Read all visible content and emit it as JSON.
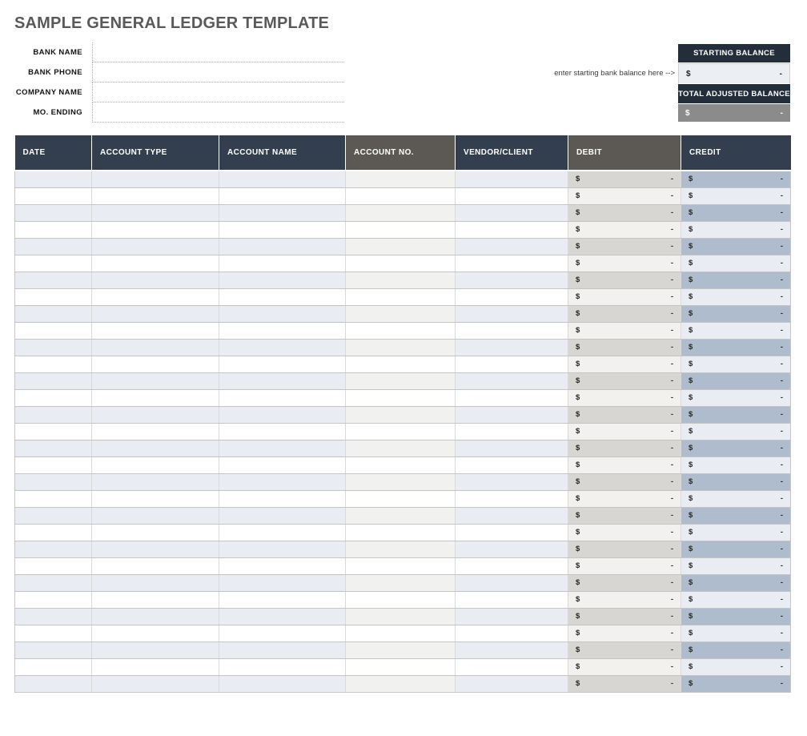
{
  "title": "SAMPLE GENERAL LEDGER TEMPLATE",
  "form": {
    "fields": [
      {
        "label": "BANK NAME",
        "value": ""
      },
      {
        "label": "BANK PHONE",
        "value": ""
      },
      {
        "label": "COMPANY NAME",
        "value": ""
      },
      {
        "label": "MO. ENDING",
        "value": ""
      }
    ]
  },
  "balance_panel": {
    "hint": "enter starting bank balance here -->",
    "starting": {
      "label": "STARTING BALANCE",
      "currency": "$",
      "amount": "-"
    },
    "total": {
      "label": "TOTAL ADJUSTED BALANCE",
      "currency": "$",
      "amount": "-"
    }
  },
  "ledger_table": {
    "columns": [
      {
        "label": "DATE",
        "style": "navy"
      },
      {
        "label": "ACCOUNT TYPE",
        "style": "navy"
      },
      {
        "label": "ACCOUNT NAME",
        "style": "navy"
      },
      {
        "label": "ACCOUNT NO.",
        "style": "gray"
      },
      {
        "label": "VENDOR/CLIENT",
        "style": "navy"
      },
      {
        "label": "DEBIT",
        "style": "gray"
      },
      {
        "label": "CREDIT",
        "style": "navy"
      }
    ],
    "rows": [
      {
        "date": "",
        "account_type": "",
        "account_name": "",
        "account_no": "",
        "vendor_client": "",
        "debit": {
          "currency": "$",
          "amount": "-"
        },
        "credit": {
          "currency": "$",
          "amount": "-"
        }
      },
      {
        "date": "",
        "account_type": "",
        "account_name": "",
        "account_no": "",
        "vendor_client": "",
        "debit": {
          "currency": "$",
          "amount": "-"
        },
        "credit": {
          "currency": "$",
          "amount": "-"
        }
      },
      {
        "date": "",
        "account_type": "",
        "account_name": "",
        "account_no": "",
        "vendor_client": "",
        "debit": {
          "currency": "$",
          "amount": "-"
        },
        "credit": {
          "currency": "$",
          "amount": "-"
        }
      },
      {
        "date": "",
        "account_type": "",
        "account_name": "",
        "account_no": "",
        "vendor_client": "",
        "debit": {
          "currency": "$",
          "amount": "-"
        },
        "credit": {
          "currency": "$",
          "amount": "-"
        }
      },
      {
        "date": "",
        "account_type": "",
        "account_name": "",
        "account_no": "",
        "vendor_client": "",
        "debit": {
          "currency": "$",
          "amount": "-"
        },
        "credit": {
          "currency": "$",
          "amount": "-"
        }
      },
      {
        "date": "",
        "account_type": "",
        "account_name": "",
        "account_no": "",
        "vendor_client": "",
        "debit": {
          "currency": "$",
          "amount": "-"
        },
        "credit": {
          "currency": "$",
          "amount": "-"
        }
      },
      {
        "date": "",
        "account_type": "",
        "account_name": "",
        "account_no": "",
        "vendor_client": "",
        "debit": {
          "currency": "$",
          "amount": "-"
        },
        "credit": {
          "currency": "$",
          "amount": "-"
        }
      },
      {
        "date": "",
        "account_type": "",
        "account_name": "",
        "account_no": "",
        "vendor_client": "",
        "debit": {
          "currency": "$",
          "amount": "-"
        },
        "credit": {
          "currency": "$",
          "amount": "-"
        }
      },
      {
        "date": "",
        "account_type": "",
        "account_name": "",
        "account_no": "",
        "vendor_client": "",
        "debit": {
          "currency": "$",
          "amount": "-"
        },
        "credit": {
          "currency": "$",
          "amount": "-"
        }
      },
      {
        "date": "",
        "account_type": "",
        "account_name": "",
        "account_no": "",
        "vendor_client": "",
        "debit": {
          "currency": "$",
          "amount": "-"
        },
        "credit": {
          "currency": "$",
          "amount": "-"
        }
      },
      {
        "date": "",
        "account_type": "",
        "account_name": "",
        "account_no": "",
        "vendor_client": "",
        "debit": {
          "currency": "$",
          "amount": "-"
        },
        "credit": {
          "currency": "$",
          "amount": "-"
        }
      },
      {
        "date": "",
        "account_type": "",
        "account_name": "",
        "account_no": "",
        "vendor_client": "",
        "debit": {
          "currency": "$",
          "amount": "-"
        },
        "credit": {
          "currency": "$",
          "amount": "-"
        }
      },
      {
        "date": "",
        "account_type": "",
        "account_name": "",
        "account_no": "",
        "vendor_client": "",
        "debit": {
          "currency": "$",
          "amount": "-"
        },
        "credit": {
          "currency": "$",
          "amount": "-"
        }
      },
      {
        "date": "",
        "account_type": "",
        "account_name": "",
        "account_no": "",
        "vendor_client": "",
        "debit": {
          "currency": "$",
          "amount": "-"
        },
        "credit": {
          "currency": "$",
          "amount": "-"
        }
      },
      {
        "date": "",
        "account_type": "",
        "account_name": "",
        "account_no": "",
        "vendor_client": "",
        "debit": {
          "currency": "$",
          "amount": "-"
        },
        "credit": {
          "currency": "$",
          "amount": "-"
        }
      },
      {
        "date": "",
        "account_type": "",
        "account_name": "",
        "account_no": "",
        "vendor_client": "",
        "debit": {
          "currency": "$",
          "amount": "-"
        },
        "credit": {
          "currency": "$",
          "amount": "-"
        }
      },
      {
        "date": "",
        "account_type": "",
        "account_name": "",
        "account_no": "",
        "vendor_client": "",
        "debit": {
          "currency": "$",
          "amount": "-"
        },
        "credit": {
          "currency": "$",
          "amount": "-"
        }
      },
      {
        "date": "",
        "account_type": "",
        "account_name": "",
        "account_no": "",
        "vendor_client": "",
        "debit": {
          "currency": "$",
          "amount": "-"
        },
        "credit": {
          "currency": "$",
          "amount": "-"
        }
      },
      {
        "date": "",
        "account_type": "",
        "account_name": "",
        "account_no": "",
        "vendor_client": "",
        "debit": {
          "currency": "$",
          "amount": "-"
        },
        "credit": {
          "currency": "$",
          "amount": "-"
        }
      },
      {
        "date": "",
        "account_type": "",
        "account_name": "",
        "account_no": "",
        "vendor_client": "",
        "debit": {
          "currency": "$",
          "amount": "-"
        },
        "credit": {
          "currency": "$",
          "amount": "-"
        }
      },
      {
        "date": "",
        "account_type": "",
        "account_name": "",
        "account_no": "",
        "vendor_client": "",
        "debit": {
          "currency": "$",
          "amount": "-"
        },
        "credit": {
          "currency": "$",
          "amount": "-"
        }
      },
      {
        "date": "",
        "account_type": "",
        "account_name": "",
        "account_no": "",
        "vendor_client": "",
        "debit": {
          "currency": "$",
          "amount": "-"
        },
        "credit": {
          "currency": "$",
          "amount": "-"
        }
      },
      {
        "date": "",
        "account_type": "",
        "account_name": "",
        "account_no": "",
        "vendor_client": "",
        "debit": {
          "currency": "$",
          "amount": "-"
        },
        "credit": {
          "currency": "$",
          "amount": "-"
        }
      },
      {
        "date": "",
        "account_type": "",
        "account_name": "",
        "account_no": "",
        "vendor_client": "",
        "debit": {
          "currency": "$",
          "amount": "-"
        },
        "credit": {
          "currency": "$",
          "amount": "-"
        }
      },
      {
        "date": "",
        "account_type": "",
        "account_name": "",
        "account_no": "",
        "vendor_client": "",
        "debit": {
          "currency": "$",
          "amount": "-"
        },
        "credit": {
          "currency": "$",
          "amount": "-"
        }
      },
      {
        "date": "",
        "account_type": "",
        "account_name": "",
        "account_no": "",
        "vendor_client": "",
        "debit": {
          "currency": "$",
          "amount": "-"
        },
        "credit": {
          "currency": "$",
          "amount": "-"
        }
      },
      {
        "date": "",
        "account_type": "",
        "account_name": "",
        "account_no": "",
        "vendor_client": "",
        "debit": {
          "currency": "$",
          "amount": "-"
        },
        "credit": {
          "currency": "$",
          "amount": "-"
        }
      },
      {
        "date": "",
        "account_type": "",
        "account_name": "",
        "account_no": "",
        "vendor_client": "",
        "debit": {
          "currency": "$",
          "amount": "-"
        },
        "credit": {
          "currency": "$",
          "amount": "-"
        }
      },
      {
        "date": "",
        "account_type": "",
        "account_name": "",
        "account_no": "",
        "vendor_client": "",
        "debit": {
          "currency": "$",
          "amount": "-"
        },
        "credit": {
          "currency": "$",
          "amount": "-"
        }
      },
      {
        "date": "",
        "account_type": "",
        "account_name": "",
        "account_no": "",
        "vendor_client": "",
        "debit": {
          "currency": "$",
          "amount": "-"
        },
        "credit": {
          "currency": "$",
          "amount": "-"
        }
      },
      {
        "date": "",
        "account_type": "",
        "account_name": "",
        "account_no": "",
        "vendor_client": "",
        "debit": {
          "currency": "$",
          "amount": "-"
        },
        "credit": {
          "currency": "$",
          "amount": "-"
        }
      }
    ]
  },
  "colors": {
    "navy_header": "#333F4F",
    "dark_header": "#242E3A",
    "gray_header": "#5C5955",
    "row_shade_blue": "#E9EDF3",
    "row_shade_neutral": "#F1F1F0",
    "debit_shade": "#D8D6D3",
    "debit_light": "#F2F1EF",
    "credit_shade": "#AEBCCE",
    "credit_light": "#E9EDF3",
    "total_value_bg": "#8B8B8B",
    "starting_value_bg": "#EBEFF4",
    "title_text": "#595959"
  }
}
